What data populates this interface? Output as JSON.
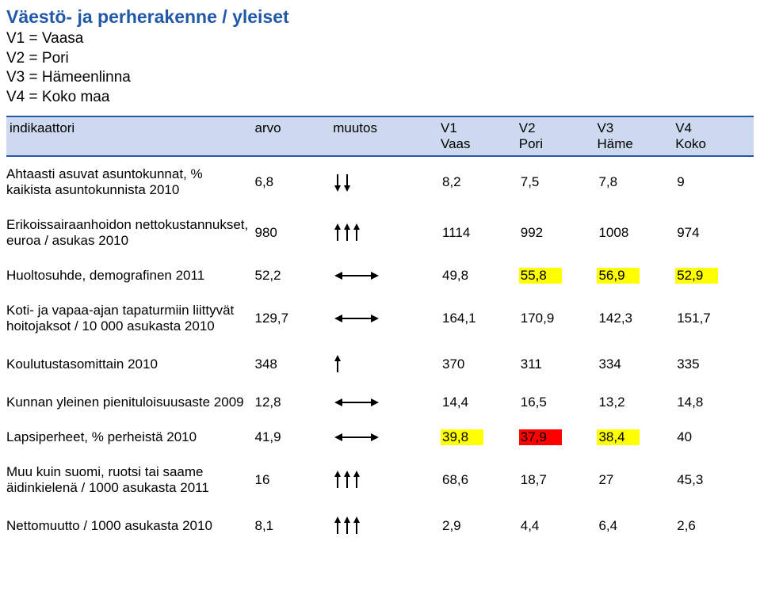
{
  "title": "Väestö- ja perherakenne / yleiset",
  "legend": {
    "v1": "V1 = Vaasa",
    "v2": "V2 = Pori",
    "v3": "V3 = Hämeenlinna",
    "v4": "V4 = Koko maa"
  },
  "headers": {
    "indikaattori": "indikaattori",
    "arvo": "arvo",
    "muutos": "muutos",
    "c1_top": "V1",
    "c1_bot": "Vaas",
    "c2_top": "V2",
    "c2_bot": "Pori",
    "c3_top": "V3",
    "c3_bot": "Häme",
    "c4_top": "V4",
    "c4_bot": "Koko"
  },
  "icons": {
    "down2": {
      "type": "arrows-down",
      "count": 2,
      "color": "#000000"
    },
    "up3": {
      "type": "arrows-up",
      "count": 3,
      "color": "#000000"
    },
    "left_right": {
      "type": "left-right",
      "color": "#000000"
    },
    "up1": {
      "type": "arrows-up",
      "count": 1,
      "color": "#000000"
    }
  },
  "colors": {
    "header_bg": "#cdd9ef",
    "border": "#2159a8",
    "yellow": "#ffff00",
    "red": "#ff0000",
    "title": "#2159a8"
  },
  "rows": [
    {
      "indicator": "Ahtaasti asuvat asuntokunnat, % kaikista asuntokunnista 2010",
      "arvo": "6,8",
      "muutos_icon": "down2",
      "c1": "8,2",
      "c2": "7,5",
      "c3": "7,8",
      "c4": "9",
      "hl": {}
    },
    {
      "indicator": "Erikoissairaanhoidon nettokustannukset, euroa / asukas 2010",
      "arvo": "980",
      "muutos_icon": "up3",
      "c1": "1114",
      "c2": "992",
      "c3": "1008",
      "c4": "974",
      "hl": {}
    },
    {
      "indicator": "Huoltosuhde, demografinen 2011",
      "arvo": "52,2",
      "muutos_icon": "left_right",
      "c1": "49,8",
      "c2": "55,8",
      "c3": "56,9",
      "c4": "52,9",
      "hl": {
        "c2": "yellow",
        "c3": "yellow",
        "c4": "yellow"
      }
    },
    {
      "indicator": "Koti- ja vapaa-ajan tapaturmiin liittyvät hoitojaksot / 10 000 asukasta 2010",
      "arvo": "129,7",
      "muutos_icon": "left_right",
      "c1": "164,1",
      "c2": "170,9",
      "c3": "142,3",
      "c4": "151,7",
      "hl": {}
    },
    {
      "indicator": "Koulutustasomittain 2010",
      "arvo": "348",
      "muutos_icon": "up1",
      "c1": "370",
      "c2": "311",
      "c3": "334",
      "c4": "335",
      "hl": {}
    },
    {
      "indicator": "Kunnan yleinen pienituloisuusaste 2009",
      "arvo": "12,8",
      "muutos_icon": "left_right",
      "c1": "14,4",
      "c2": "16,5",
      "c3": "13,2",
      "c4": "14,8",
      "hl": {}
    },
    {
      "indicator": "Lapsiperheet, % perheistä 2010",
      "arvo": "41,9",
      "muutos_icon": "left_right",
      "c1": "39,8",
      "c2": "37,9",
      "c3": "38,4",
      "c4": "40",
      "hl": {
        "c1": "yellow",
        "c2": "red",
        "c3": "yellow"
      }
    },
    {
      "indicator": "Muu kuin suomi, ruotsi tai saame äidinkielenä / 1000 asukasta 2011",
      "arvo": "16",
      "muutos_icon": "up3",
      "c1": "68,6",
      "c2": "18,7",
      "c3": "27",
      "c4": "45,3",
      "hl": {}
    },
    {
      "indicator": "Nettomuutto / 1000 asukasta 2010",
      "arvo": "8,1",
      "muutos_icon": "up3",
      "c1": "2,9",
      "c2": "4,4",
      "c3": "6,4",
      "c4": "2,6",
      "hl": {}
    }
  ]
}
